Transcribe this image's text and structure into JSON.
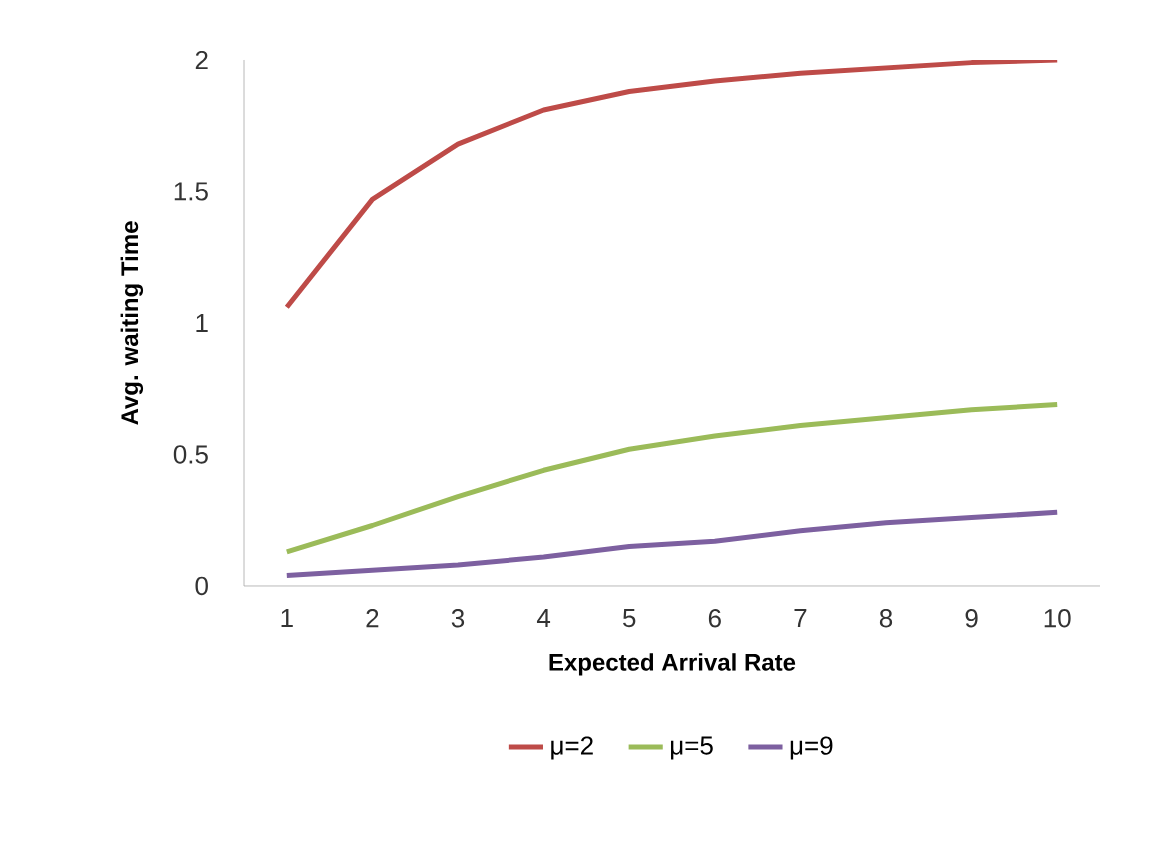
{
  "chart_data": {
    "type": "line",
    "xlabel": "Expected Arrival Rate",
    "ylabel": "Avg. waiting Time",
    "x": [
      1,
      2,
      3,
      4,
      5,
      6,
      7,
      8,
      9,
      10
    ],
    "xlim": [
      0.5,
      10.5
    ],
    "xticks": [
      1,
      2,
      3,
      4,
      5,
      6,
      7,
      8,
      9,
      10
    ],
    "ylim": [
      0,
      2
    ],
    "yticks": [
      0,
      0.5,
      1,
      1.5,
      2
    ],
    "grid": false,
    "legend": "bottom",
    "marker": "none",
    "line_style": "solid",
    "series": [
      {
        "name": "μ=2",
        "color": "#be4b48",
        "values": [
          1.06,
          1.47,
          1.68,
          1.81,
          1.88,
          1.92,
          1.95,
          1.97,
          1.99,
          2.0
        ]
      },
      {
        "name": "μ=5",
        "color": "#9bbb59",
        "values": [
          0.13,
          0.23,
          0.34,
          0.44,
          0.52,
          0.57,
          0.61,
          0.64,
          0.67,
          0.69
        ]
      },
      {
        "name": "μ=9",
        "color": "#7d60a0",
        "values": [
          0.04,
          0.06,
          0.08,
          0.11,
          0.15,
          0.17,
          0.21,
          0.24,
          0.26,
          0.28
        ]
      }
    ]
  }
}
